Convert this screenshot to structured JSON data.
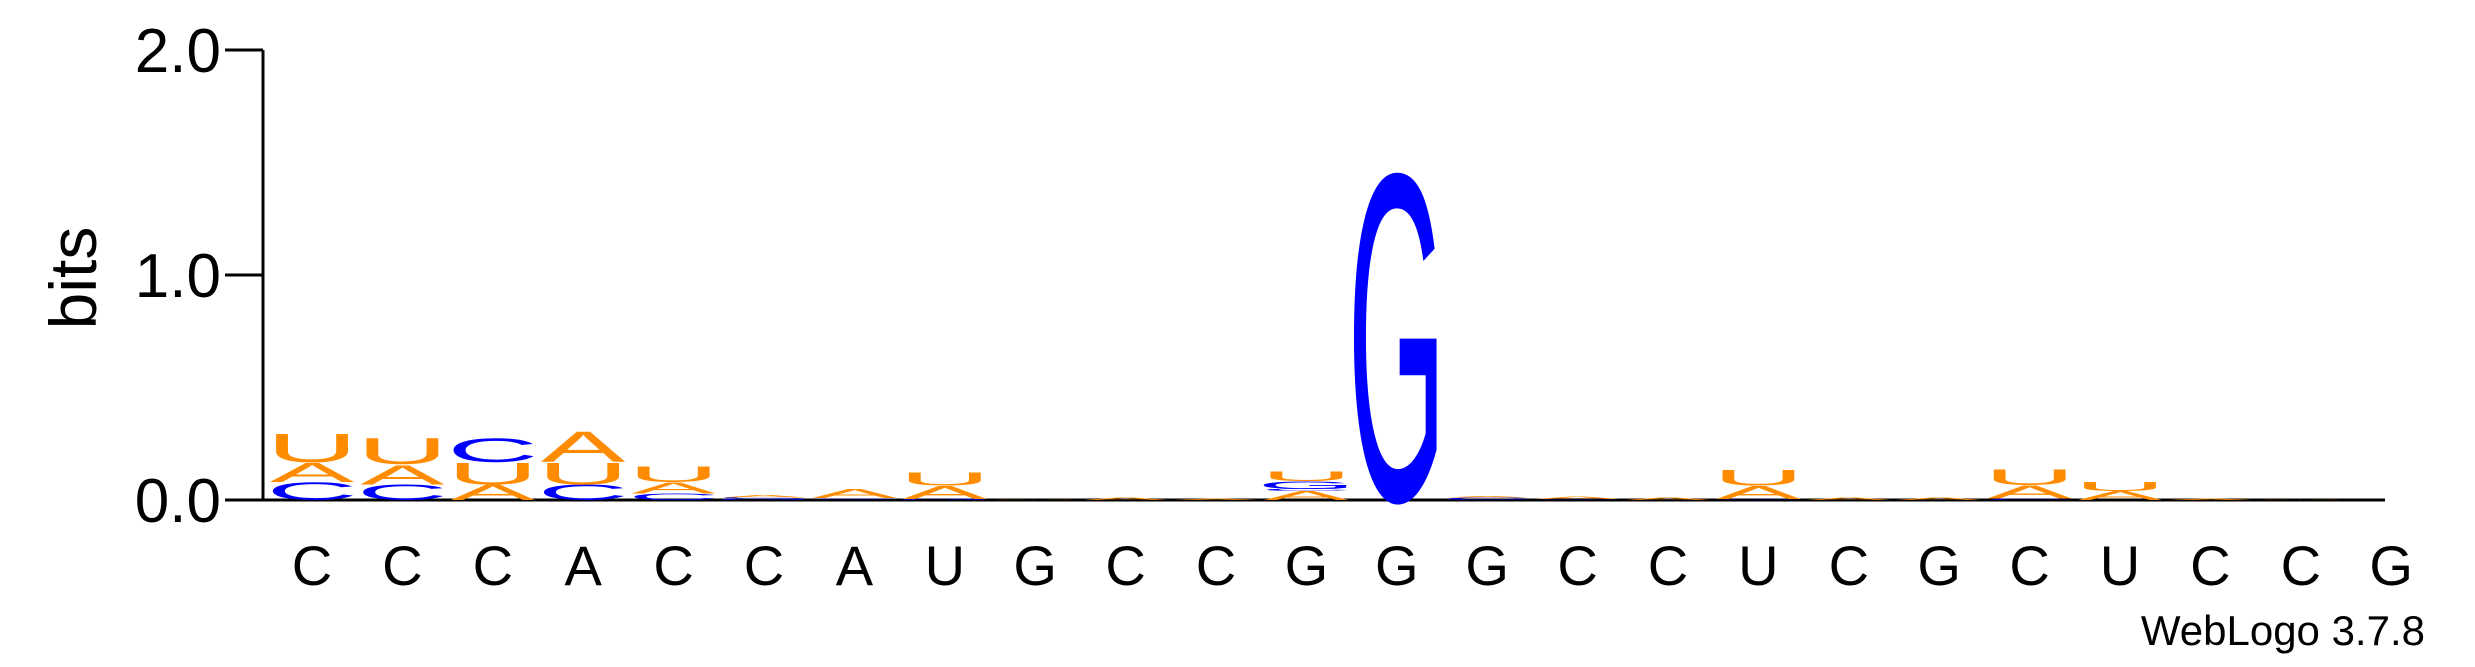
{
  "chart_data": {
    "type": "sequence-logo",
    "ylabel": "bits",
    "ylim": [
      0,
      2.0
    ],
    "yticks": [
      "0.0",
      "1.0",
      "2.0"
    ],
    "footer": "WebLogo 3.7.8",
    "colors": {
      "A": "#ff8c00",
      "U": "#ff8c00",
      "C": "#0000ff",
      "G": "#0000ff"
    },
    "consensus": [
      "C",
      "C",
      "C",
      "A",
      "C",
      "C",
      "A",
      "U",
      "G",
      "C",
      "C",
      "G",
      "G",
      "G",
      "C",
      "C",
      "U",
      "C",
      "G",
      "C",
      "U",
      "C",
      "C",
      "G"
    ],
    "positions": [
      {
        "stack": [
          [
            "C",
            0.08
          ],
          [
            "A",
            0.09
          ],
          [
            "U",
            0.13
          ]
        ]
      },
      {
        "stack": [
          [
            "C",
            0.07
          ],
          [
            "A",
            0.09
          ],
          [
            "U",
            0.12
          ]
        ]
      },
      {
        "stack": [
          [
            "A",
            0.07
          ],
          [
            "U",
            0.1
          ],
          [
            "C",
            0.11
          ]
        ]
      },
      {
        "stack": [
          [
            "C",
            0.07
          ],
          [
            "U",
            0.1
          ],
          [
            "A",
            0.14
          ]
        ]
      },
      {
        "stack": [
          [
            "C",
            0.03
          ],
          [
            "A",
            0.05
          ],
          [
            "U",
            0.07
          ]
        ]
      },
      {
        "stack": [
          [
            "G",
            0.006
          ],
          [
            "C",
            0.006
          ],
          [
            "A",
            0.01
          ]
        ]
      },
      {
        "stack": [
          [
            "C",
            0.004
          ],
          [
            "G",
            0.004
          ],
          [
            "A",
            0.04
          ]
        ]
      },
      {
        "stack": [
          [
            "G",
            0.005
          ],
          [
            "A",
            0.06
          ],
          [
            "U",
            0.06
          ]
        ]
      },
      {
        "stack": [
          [
            "A",
            0.004
          ]
        ]
      },
      {
        "stack": [
          [
            "A",
            0.01
          ]
        ]
      },
      {
        "stack": [
          [
            "A",
            0.006
          ]
        ]
      },
      {
        "stack": [
          [
            "A",
            0.04
          ],
          [
            "C",
            0.01
          ],
          [
            "G",
            0.035
          ],
          [
            "U",
            0.045
          ]
        ]
      },
      {
        "stack": [
          [
            "G",
            1.5
          ]
        ]
      },
      {
        "stack": [
          [
            "C",
            0.012
          ],
          [
            "A",
            0.006
          ]
        ]
      },
      {
        "stack": [
          [
            "C",
            0.004
          ],
          [
            "A",
            0.01
          ]
        ]
      },
      {
        "stack": [
          [
            "A",
            0.01
          ]
        ]
      },
      {
        "stack": [
          [
            "C",
            0.004
          ],
          [
            "A",
            0.06
          ],
          [
            "U",
            0.07
          ]
        ]
      },
      {
        "stack": [
          [
            "A",
            0.01
          ]
        ]
      },
      {
        "stack": [
          [
            "A",
            0.01
          ]
        ]
      },
      {
        "stack": [
          [
            "C",
            0.006
          ],
          [
            "A",
            0.06
          ],
          [
            "U",
            0.07
          ]
        ]
      },
      {
        "stack": [
          [
            "A",
            0.04
          ],
          [
            "U",
            0.04
          ]
        ]
      },
      {
        "stack": [
          [
            "A",
            0.006
          ]
        ]
      },
      {
        "stack": [
          [
            "A",
            0.004
          ]
        ]
      },
      {
        "stack": []
      }
    ]
  }
}
